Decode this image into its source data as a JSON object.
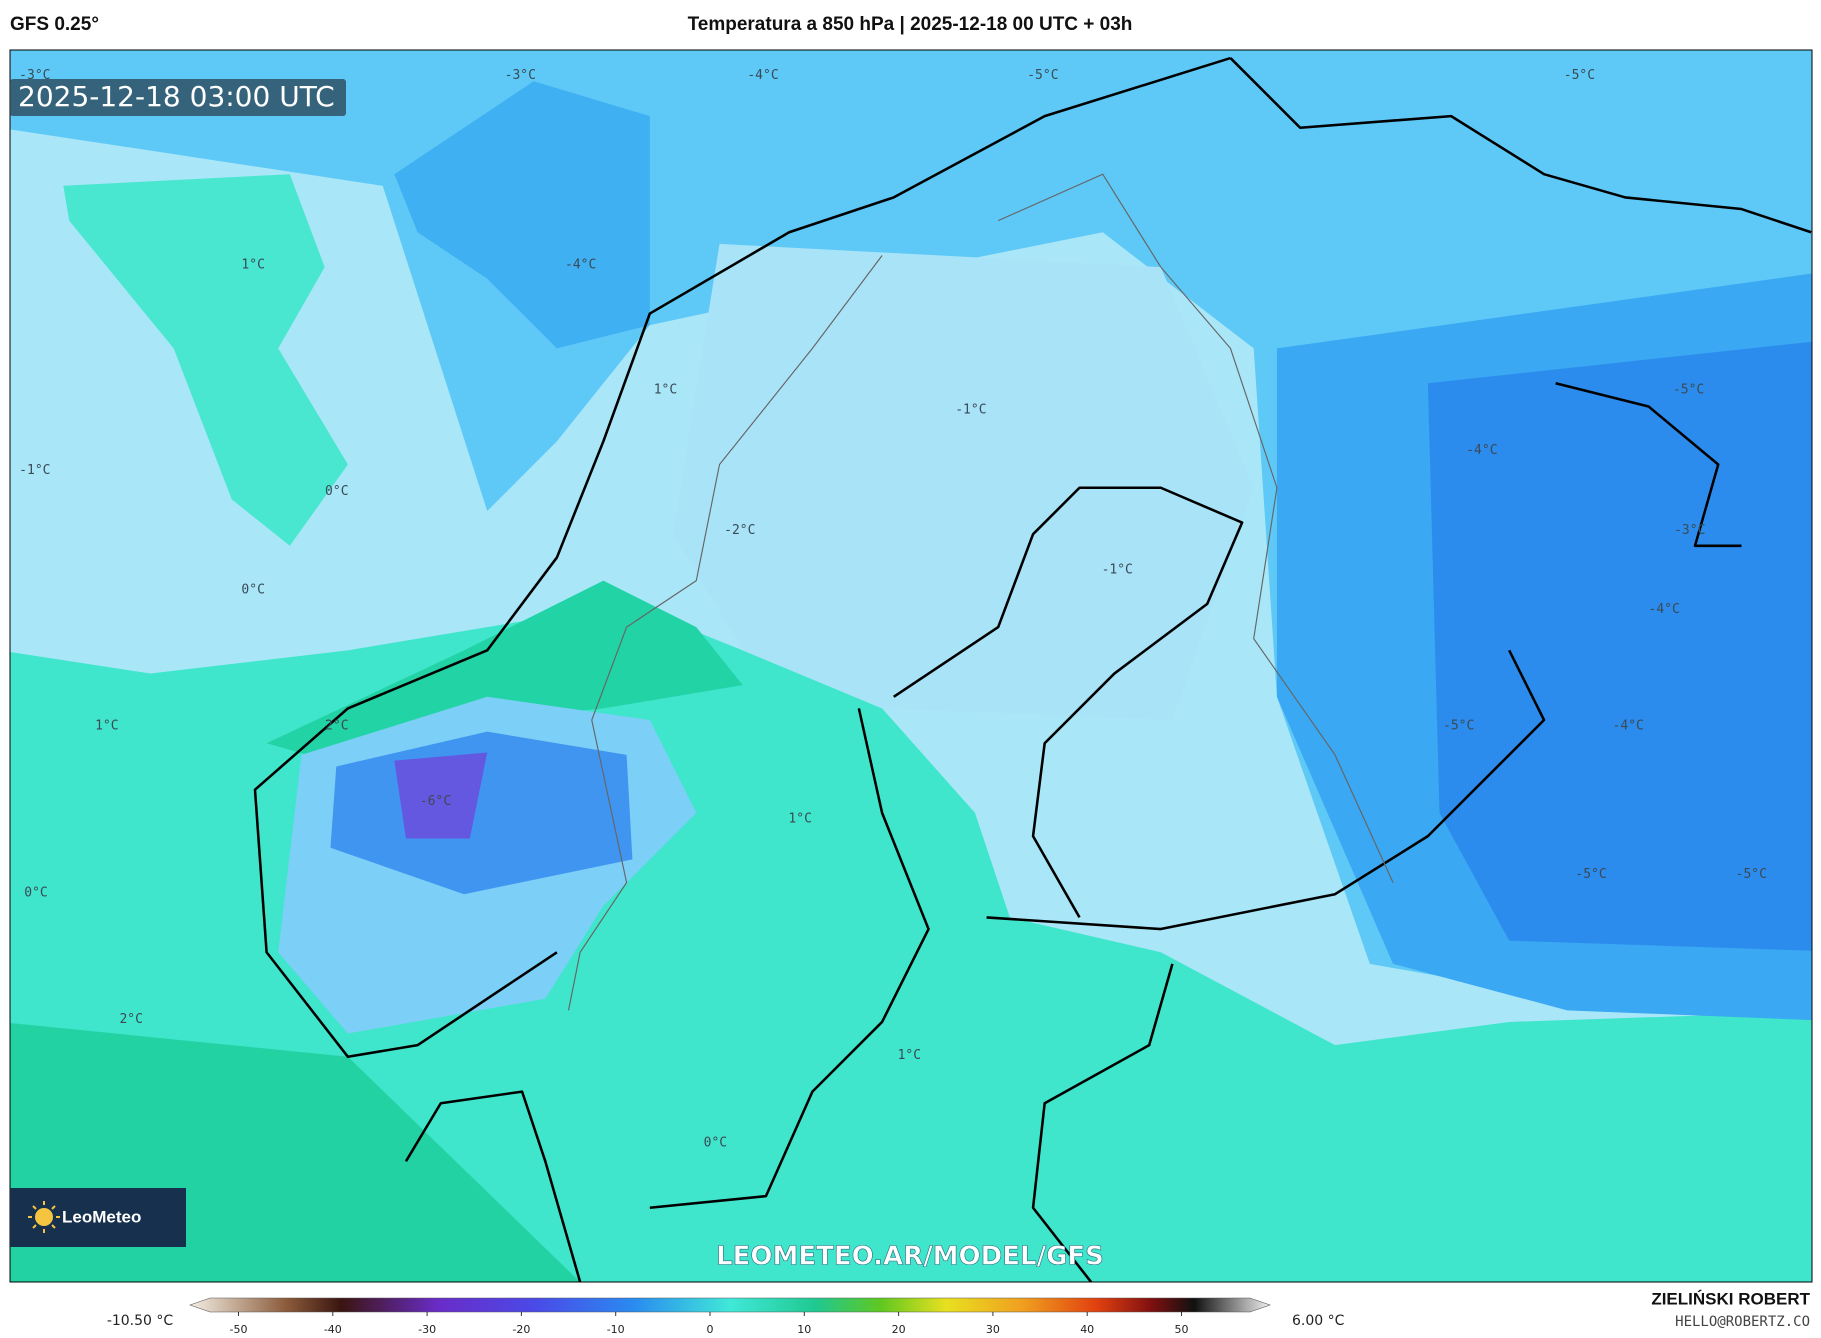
{
  "header": {
    "model": "GFS 0.25°",
    "title": "Temperatura a 850 hPa | 2025-12-18 00 UTC + 03h"
  },
  "timestamp": "2025-12-18 03:00 UTC",
  "contour_labels": [
    "-3°C",
    "-3°C",
    "-4°C",
    "-5°C",
    "-5°C",
    "1°C",
    "-4°C",
    "1°C",
    "-1°C",
    "-1°C",
    "0°C",
    "-5°C",
    "-4°C",
    "-3°C",
    "-2°C",
    "-1°C",
    "0°C",
    "-4°C",
    "1°C",
    "2°C",
    "-5°C",
    "-4°C",
    "-6°C",
    "1°C",
    "0°C",
    "-5°C",
    "-5°C",
    "2°C",
    "1°C",
    "0°C"
  ],
  "logo": {
    "brand": "LeoMeteo"
  },
  "watermark": "LEOMETEO.AR/MODEL/GFS",
  "colorbar": {
    "min_label": "-10.50 °C",
    "max_label": "6.00 °C",
    "ticks": [
      -50,
      -40,
      -30,
      -20,
      -10,
      0,
      10,
      20,
      30,
      40,
      50
    ]
  },
  "credit": {
    "name": "ZIELIŃSKI ROBERT",
    "email": "HELLO@ROBERTZ.CO"
  }
}
